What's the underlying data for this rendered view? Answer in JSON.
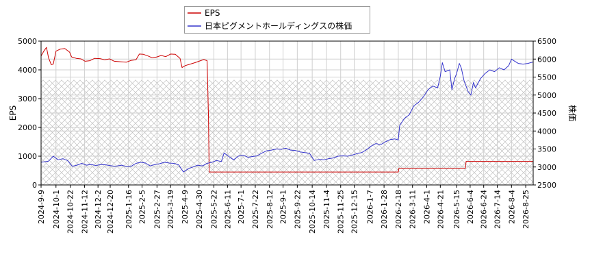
{
  "chart_data": {
    "type": "line",
    "x_start": "2024-09-09",
    "x_end": "2026-09-05",
    "xticks": [
      "2024-9-9",
      "2024-10-1",
      "2024-10-22",
      "2024-11-12",
      "2024-12-2",
      "2024-12-20",
      "2025-1-16",
      "2025-2-5",
      "2025-2-27",
      "2025-3-19",
      "2025-4-9",
      "2025-4-30",
      "2025-5-22",
      "2025-6-11",
      "2025-7-1",
      "2025-7-22",
      "2025-8-12",
      "2025-9-1",
      "2025-9-22",
      "2025-10-14",
      "2025-11-4",
      "2025-11-25",
      "2025-12-15",
      "2026-1-7",
      "2026-1-28",
      "2026-2-18",
      "2026-3-11",
      "2026-4-1",
      "2026-4-21",
      "2026-5-15",
      "2026-6-4",
      "2026-6-24",
      "2026-7-14",
      "2026-8-4",
      "2026-8-25"
    ],
    "ylabel_left": "EPS",
    "ylabel_right": "株価",
    "ylim_left": [
      0,
      5000
    ],
    "yticks_left": [
      "0",
      "1000",
      "2000",
      "3000",
      "4000",
      "5000"
    ],
    "ylim_right": [
      2500,
      6500
    ],
    "yticks_right": [
      "2500",
      "3000",
      "3500",
      "4000",
      "4500",
      "5000",
      "5500",
      "6000",
      "6500"
    ],
    "legend": {
      "position": "top-left-outside",
      "items": [
        "EPS",
        "日本ピグメントホールディングスの株価"
      ]
    },
    "grid": true,
    "hatch_band_eps": [
      0,
      3650
    ],
    "series": [
      {
        "name": "EPS",
        "axis": "left",
        "color": "#cc0000",
        "points": [
          [
            "2024-09-09",
            4480
          ],
          [
            "2024-09-13",
            4650
          ],
          [
            "2024-09-17",
            4780
          ],
          [
            "2024-09-20",
            4420
          ],
          [
            "2024-09-24",
            4180
          ],
          [
            "2024-09-27",
            4200
          ],
          [
            "2024-10-01",
            4650
          ],
          [
            "2024-10-07",
            4720
          ],
          [
            "2024-10-14",
            4740
          ],
          [
            "2024-10-21",
            4620
          ],
          [
            "2024-10-24",
            4450
          ],
          [
            "2024-10-31",
            4400
          ],
          [
            "2024-11-07",
            4380
          ],
          [
            "2024-11-13",
            4300
          ],
          [
            "2024-11-20",
            4320
          ],
          [
            "2024-11-27",
            4400
          ],
          [
            "2024-12-05",
            4390
          ],
          [
            "2024-12-12",
            4350
          ],
          [
            "2024-12-19",
            4380
          ],
          [
            "2024-12-26",
            4300
          ],
          [
            "2025-01-05",
            4280
          ],
          [
            "2025-01-13",
            4270
          ],
          [
            "2025-01-20",
            4330
          ],
          [
            "2025-01-27",
            4350
          ],
          [
            "2025-02-01",
            4550
          ],
          [
            "2025-02-07",
            4540
          ],
          [
            "2025-02-14",
            4480
          ],
          [
            "2025-02-20",
            4420
          ],
          [
            "2025-02-27",
            4450
          ],
          [
            "2025-03-05",
            4500
          ],
          [
            "2025-03-12",
            4460
          ],
          [
            "2025-03-19",
            4550
          ],
          [
            "2025-03-26",
            4540
          ],
          [
            "2025-04-02",
            4400
          ],
          [
            "2025-04-05",
            4080
          ],
          [
            "2025-04-10",
            4150
          ],
          [
            "2025-04-17",
            4200
          ],
          [
            "2025-04-24",
            4250
          ],
          [
            "2025-04-30",
            4300
          ],
          [
            "2025-05-07",
            4360
          ],
          [
            "2025-05-12",
            4320
          ],
          [
            "2025-05-14",
            2350
          ],
          [
            "2025-05-15",
            450
          ],
          [
            "2026-02-18",
            450
          ],
          [
            "2026-02-19",
            580
          ],
          [
            "2026-05-28",
            580
          ],
          [
            "2026-05-29",
            820
          ],
          [
            "2026-09-05",
            820
          ]
        ]
      },
      {
        "name": "日本ピグメントホールディングスの株価",
        "axis": "right",
        "color": "#3333cc",
        "points": [
          [
            "2024-09-09",
            3130
          ],
          [
            "2024-09-20",
            3160
          ],
          [
            "2024-09-27",
            3300
          ],
          [
            "2024-10-04",
            3200
          ],
          [
            "2024-10-11",
            3230
          ],
          [
            "2024-10-18",
            3180
          ],
          [
            "2024-10-25",
            3020
          ],
          [
            "2024-11-01",
            3050
          ],
          [
            "2024-11-08",
            3100
          ],
          [
            "2024-11-15",
            3050
          ],
          [
            "2024-11-22",
            3070
          ],
          [
            "2024-11-29",
            3040
          ],
          [
            "2024-12-06",
            3070
          ],
          [
            "2024-12-13",
            3060
          ],
          [
            "2024-12-20",
            3040
          ],
          [
            "2024-12-27",
            3020
          ],
          [
            "2025-01-06",
            3050
          ],
          [
            "2025-01-13",
            3010
          ],
          [
            "2025-01-20",
            3020
          ],
          [
            "2025-01-27",
            3100
          ],
          [
            "2025-02-03",
            3130
          ],
          [
            "2025-02-10",
            3110
          ],
          [
            "2025-02-17",
            3030
          ],
          [
            "2025-02-24",
            3070
          ],
          [
            "2025-03-03",
            3090
          ],
          [
            "2025-03-10",
            3130
          ],
          [
            "2025-03-17",
            3110
          ],
          [
            "2025-03-24",
            3100
          ],
          [
            "2025-03-31",
            3060
          ],
          [
            "2025-04-07",
            2860
          ],
          [
            "2025-04-14",
            2950
          ],
          [
            "2025-04-21",
            3000
          ],
          [
            "2025-04-28",
            3050
          ],
          [
            "2025-05-05",
            3030
          ],
          [
            "2025-05-12",
            3100
          ],
          [
            "2025-05-19",
            3130
          ],
          [
            "2025-05-26",
            3180
          ],
          [
            "2025-06-02",
            3150
          ],
          [
            "2025-06-06",
            3390
          ],
          [
            "2025-06-13",
            3290
          ],
          [
            "2025-06-20",
            3200
          ],
          [
            "2025-06-27",
            3300
          ],
          [
            "2025-07-04",
            3330
          ],
          [
            "2025-07-11",
            3270
          ],
          [
            "2025-07-18",
            3290
          ],
          [
            "2025-07-25",
            3310
          ],
          [
            "2025-08-01",
            3390
          ],
          [
            "2025-08-08",
            3450
          ],
          [
            "2025-08-15",
            3470
          ],
          [
            "2025-08-22",
            3500
          ],
          [
            "2025-08-29",
            3490
          ],
          [
            "2025-09-05",
            3520
          ],
          [
            "2025-09-12",
            3470
          ],
          [
            "2025-09-19",
            3460
          ],
          [
            "2025-09-26",
            3420
          ],
          [
            "2025-10-03",
            3400
          ],
          [
            "2025-10-10",
            3380
          ],
          [
            "2025-10-17",
            3180
          ],
          [
            "2025-10-24",
            3210
          ],
          [
            "2025-10-31",
            3200
          ],
          [
            "2025-11-07",
            3230
          ],
          [
            "2025-11-14",
            3250
          ],
          [
            "2025-11-21",
            3300
          ],
          [
            "2025-11-28",
            3310
          ],
          [
            "2025-12-05",
            3300
          ],
          [
            "2025-12-12",
            3330
          ],
          [
            "2025-12-19",
            3370
          ],
          [
            "2025-12-26",
            3400
          ],
          [
            "2026-01-02",
            3480
          ],
          [
            "2026-01-09",
            3580
          ],
          [
            "2026-01-16",
            3650
          ],
          [
            "2026-01-23",
            3620
          ],
          [
            "2026-01-30",
            3700
          ],
          [
            "2026-02-06",
            3760
          ],
          [
            "2026-02-13",
            3780
          ],
          [
            "2026-02-18",
            3750
          ],
          [
            "2026-02-20",
            4150
          ],
          [
            "2026-02-27",
            4350
          ],
          [
            "2026-03-06",
            4450
          ],
          [
            "2026-03-13",
            4700
          ],
          [
            "2026-03-20",
            4800
          ],
          [
            "2026-03-27",
            4950
          ],
          [
            "2026-04-03",
            5150
          ],
          [
            "2026-04-10",
            5250
          ],
          [
            "2026-04-17",
            5200
          ],
          [
            "2026-04-21",
            5520
          ],
          [
            "2026-04-24",
            5900
          ],
          [
            "2026-04-28",
            5650
          ],
          [
            "2026-05-05",
            5700
          ],
          [
            "2026-05-08",
            5150
          ],
          [
            "2026-05-12",
            5450
          ],
          [
            "2026-05-15",
            5600
          ],
          [
            "2026-05-19",
            5880
          ],
          [
            "2026-05-22",
            5750
          ],
          [
            "2026-05-26",
            5400
          ],
          [
            "2026-06-01",
            5100
          ],
          [
            "2026-06-05",
            5000
          ],
          [
            "2026-06-09",
            5350
          ],
          [
            "2026-06-12",
            5200
          ],
          [
            "2026-06-19",
            5450
          ],
          [
            "2026-06-26",
            5600
          ],
          [
            "2026-07-03",
            5700
          ],
          [
            "2026-07-10",
            5650
          ],
          [
            "2026-07-17",
            5760
          ],
          [
            "2026-07-24",
            5700
          ],
          [
            "2026-07-31",
            5820
          ],
          [
            "2026-08-04",
            6000
          ],
          [
            "2026-08-08",
            5950
          ],
          [
            "2026-08-14",
            5880
          ],
          [
            "2026-08-21",
            5860
          ],
          [
            "2026-08-28",
            5880
          ],
          [
            "2026-09-05",
            5920
          ]
        ]
      }
    ]
  }
}
